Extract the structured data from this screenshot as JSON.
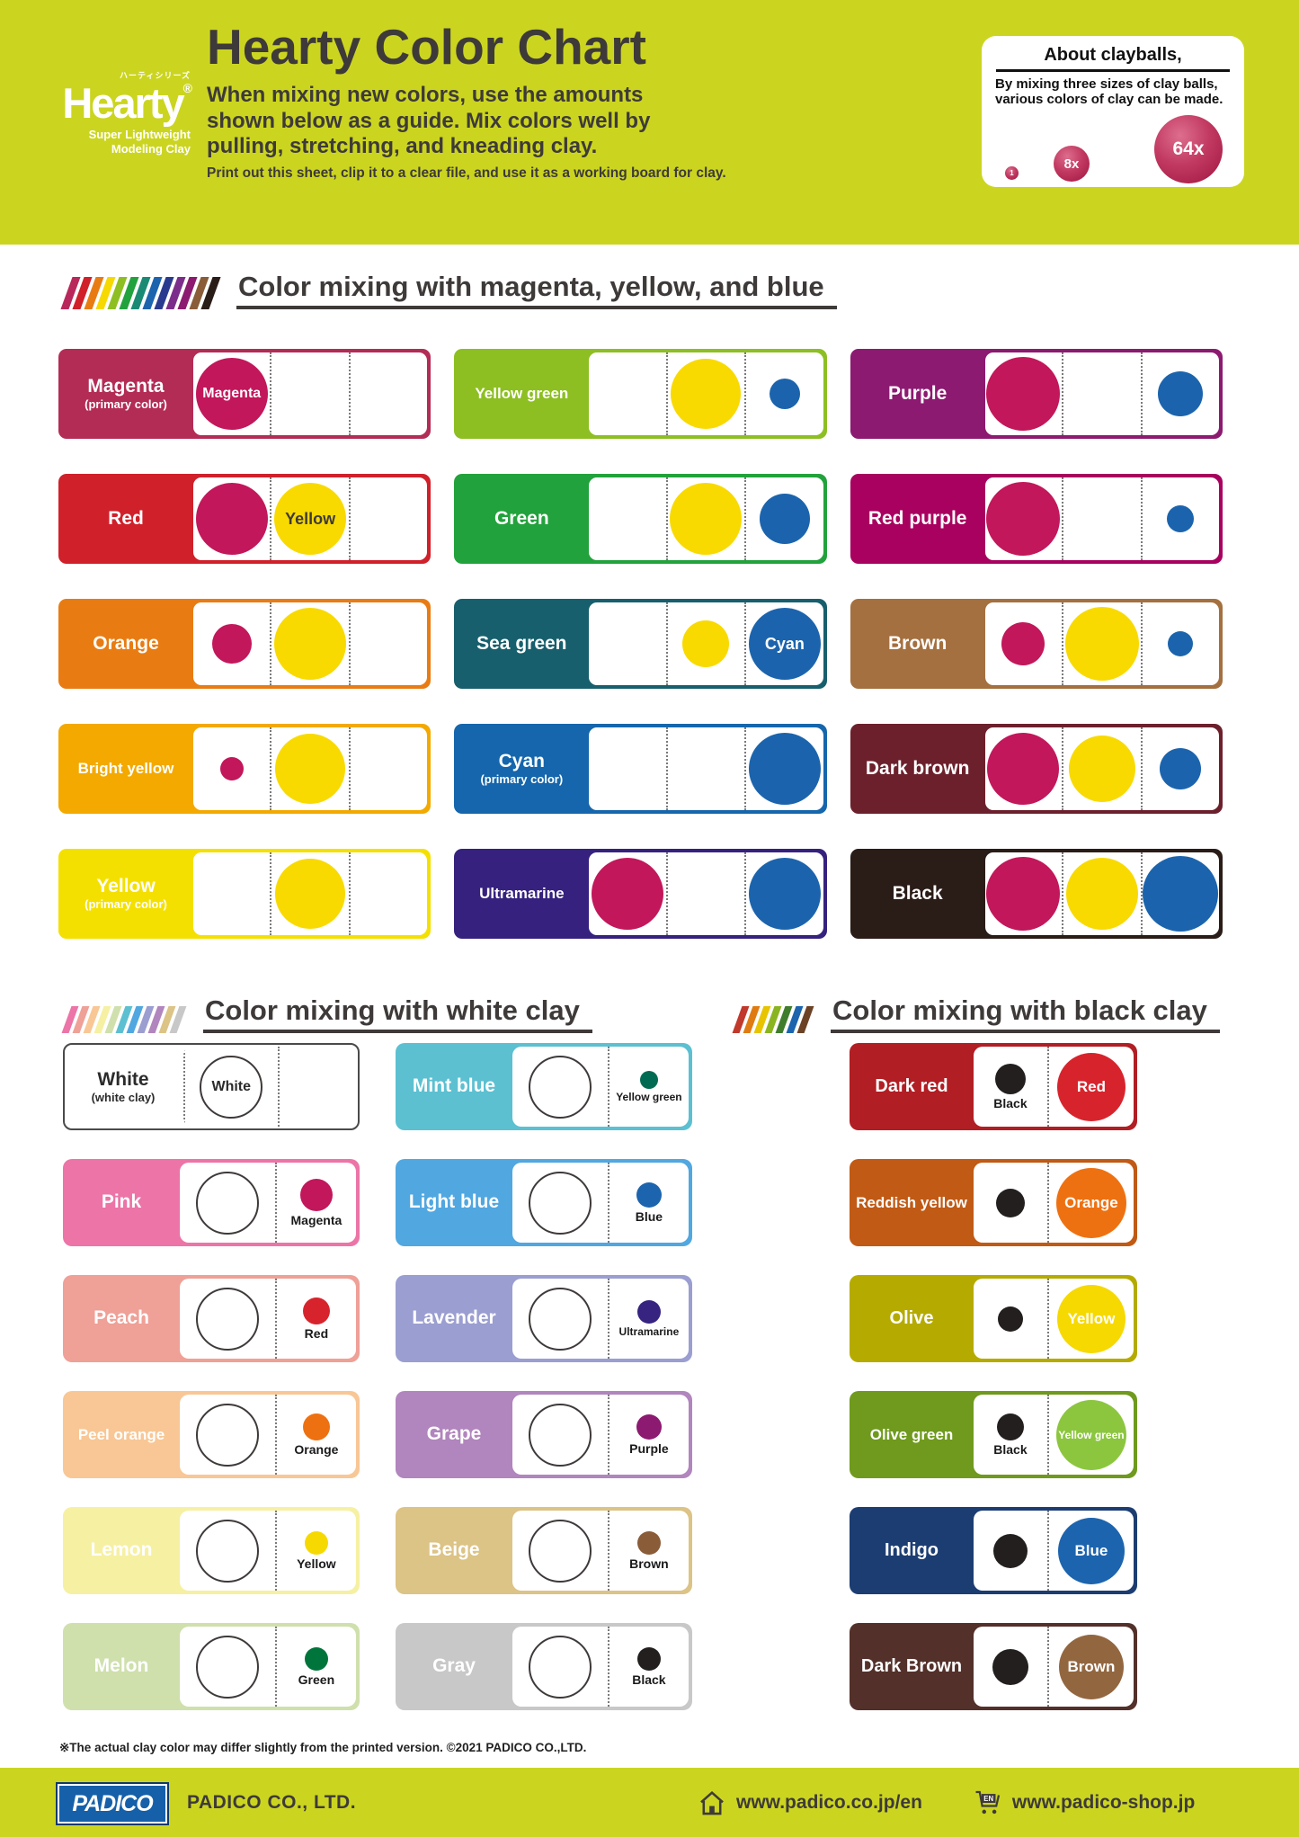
{
  "header": {
    "logo": {
      "jp": "ハーティシリーズ",
      "name": "Hearty",
      "reg": "®",
      "sub1": "Super Lightweight",
      "sub2": "Modeling Clay"
    },
    "title": "Hearty Color Chart",
    "subtitle_lines": [
      "When mixing new colors, use the amounts",
      "shown below as a guide. Mix colors well by",
      "pulling, stretching, and kneading clay."
    ],
    "note": "Print out this sheet, clip it to a clear file, and use it as a working board for clay.",
    "about": {
      "title": "About clayballs,",
      "body": "By mixing three sizes of clay balls, various colors of clay can be made.",
      "balls": [
        {
          "label": "1",
          "size": "small"
        },
        {
          "label": "8x",
          "size": "medium"
        },
        {
          "label": "64x",
          "size": "large"
        }
      ]
    }
  },
  "palette": {
    "magenta": "#c2175b",
    "yellow": "#f8da00",
    "blue": "#1b64ad",
    "dark_text": "#3e3a39",
    "header_bg": "#cbd520"
  },
  "sections": {
    "cmyb": {
      "title": "Color mixing with magenta, yellow, and blue",
      "stripes": [
        "#b8285a",
        "#d0202a",
        "#e87c13",
        "#f6d900",
        "#8dbf22",
        "#22a23c",
        "#1a8a74",
        "#1c64ae",
        "#2a3b8f",
        "#7c2d8b",
        "#8c1a70",
        "#8a5c38",
        "#2a1c17"
      ],
      "cards": [
        {
          "label": "Magenta",
          "sublabel": "(primary color)",
          "bg": "#b32c56",
          "cells": [
            {
              "name": "magenta",
              "color": "#c2175b",
              "size": 80,
              "label": "Magenta",
              "label_color": "#ffffff"
            },
            null,
            null
          ]
        },
        {
          "label": "Red",
          "bg": "#d0202a",
          "cells": [
            {
              "name": "magenta",
              "color": "#c2175b",
              "size": 80
            },
            {
              "name": "yellow",
              "color": "#f8da00",
              "size": 80,
              "label": "Yellow",
              "label_color": "#3e3a39"
            },
            null
          ]
        },
        {
          "label": "Orange",
          "bg": "#e87c13",
          "cells": [
            {
              "name": "magenta",
              "color": "#c2175b",
              "size": 44
            },
            {
              "name": "yellow",
              "color": "#f8da00",
              "size": 80
            },
            null
          ]
        },
        {
          "label": "Bright yellow",
          "bg": "#f3a900",
          "cells": [
            {
              "name": "magenta",
              "color": "#c2175b",
              "size": 26
            },
            {
              "name": "yellow",
              "color": "#f8da00",
              "size": 78
            },
            null
          ]
        },
        {
          "label": "Yellow",
          "sublabel": "(primary color)",
          "bg": "#f4e000",
          "cells": [
            null,
            {
              "name": "yellow",
              "color": "#f8da00",
              "size": 78
            },
            null
          ]
        },
        {
          "label": "Yellow green",
          "bg": "#8dbf22",
          "cells": [
            null,
            {
              "name": "yellow",
              "color": "#f8da00",
              "size": 78
            },
            {
              "name": "blue",
              "color": "#1b64ad",
              "size": 34
            }
          ]
        },
        {
          "label": "Green",
          "bg": "#22a23c",
          "cells": [
            null,
            {
              "name": "yellow",
              "color": "#f8da00",
              "size": 80
            },
            {
              "name": "blue",
              "color": "#1b64ad",
              "size": 56
            }
          ]
        },
        {
          "label": "Sea green",
          "bg": "#175f6d",
          "cells": [
            null,
            {
              "name": "yellow",
              "color": "#f8da00",
              "size": 52
            },
            {
              "name": "blue",
              "color": "#1b64ad",
              "size": 80,
              "label": "Cyan",
              "label_color": "#ffffff"
            }
          ]
        },
        {
          "label": "Cyan",
          "sublabel": "(primary color)",
          "bg": "#1566ac",
          "cells": [
            null,
            null,
            {
              "name": "blue",
              "color": "#1b64ad",
              "size": 80
            }
          ]
        },
        {
          "label": "Ultramarine",
          "bg": "#36217e",
          "cells": [
            {
              "name": "magenta",
              "color": "#c2175b",
              "size": 80
            },
            null,
            {
              "name": "blue",
              "color": "#1b64ad",
              "size": 80
            }
          ]
        },
        {
          "label": "Purple",
          "bg": "#8c1a70",
          "cells": [
            {
              "name": "magenta",
              "color": "#c2175b",
              "size": 82
            },
            null,
            {
              "name": "blue",
              "color": "#1b64ad",
              "size": 50
            }
          ]
        },
        {
          "label": "Red purple",
          "bg": "#a8015f",
          "cells": [
            {
              "name": "magenta",
              "color": "#c2175b",
              "size": 82
            },
            null,
            {
              "name": "blue",
              "color": "#1b64ad",
              "size": 30
            }
          ]
        },
        {
          "label": "Brown",
          "bg": "#a4703f",
          "cells": [
            {
              "name": "magenta",
              "color": "#c2175b",
              "size": 48
            },
            {
              "name": "yellow",
              "color": "#f8da00",
              "size": 82
            },
            {
              "name": "blue",
              "color": "#1b64ad",
              "size": 28
            }
          ]
        },
        {
          "label": "Dark brown",
          "bg": "#6c202c",
          "cells": [
            {
              "name": "magenta",
              "color": "#c2175b",
              "size": 80
            },
            {
              "name": "yellow",
              "color": "#f8da00",
              "size": 74
            },
            {
              "name": "blue",
              "color": "#1b64ad",
              "size": 46
            }
          ]
        },
        {
          "label": "Black",
          "bg": "#2a1c17",
          "cells": [
            {
              "name": "magenta",
              "color": "#c2175b",
              "size": 82
            },
            {
              "name": "yellow",
              "color": "#f8da00",
              "size": 80
            },
            {
              "name": "blue",
              "color": "#1b64ad",
              "size": 84
            }
          ]
        }
      ]
    },
    "white": {
      "title": "Color mixing with white clay",
      "stripes": [
        "#ec74a7",
        "#efa097",
        "#f8c795",
        "#f6f0a3",
        "#cfe0ad",
        "#5cc0d1",
        "#51a7e0",
        "#9b9ed0",
        "#b185bd",
        "#dcc386",
        "#c8c8c9"
      ],
      "white_ball_label": "White",
      "cards": [
        {
          "label": "White",
          "sublabel": "(white clay)",
          "bg": "#ffffff",
          "white": true,
          "circle_label": "White",
          "dot": null
        },
        {
          "label": "Pink",
          "bg": "#ec74a7",
          "dot": {
            "name": "magenta",
            "color": "#c2175b",
            "size": 36,
            "label": "Magenta"
          }
        },
        {
          "label": "Peach",
          "bg": "#efa097",
          "dot": {
            "name": "red",
            "color": "#d7242c",
            "size": 30,
            "label": "Red"
          }
        },
        {
          "label": "Peel orange",
          "bg": "#f8c795",
          "dot": {
            "name": "orange",
            "color": "#ee7111",
            "size": 30,
            "label": "Orange"
          }
        },
        {
          "label": "Lemon",
          "bg": "#f6f0a3",
          "dot": {
            "name": "yellow",
            "color": "#f6d900",
            "size": 26,
            "label": "Yellow"
          }
        },
        {
          "label": "Melon",
          "bg": "#cfe0ad",
          "dot": {
            "name": "green",
            "color": "#00753b",
            "size": 26,
            "label": "Green"
          }
        },
        {
          "label": "Mint blue",
          "bg": "#5cc0d1",
          "dot": {
            "name": "yellow-green",
            "color": "#006b52",
            "size": 20,
            "label": "Yellow green"
          }
        },
        {
          "label": "Light blue",
          "bg": "#51a7e0",
          "dot": {
            "name": "blue",
            "color": "#1c64ae",
            "size": 28,
            "label": "Blue"
          }
        },
        {
          "label": "Lavender",
          "bg": "#9b9ed0",
          "dot": {
            "name": "ultramarine",
            "color": "#372480",
            "size": 26,
            "label": "Ultramarine"
          }
        },
        {
          "label": "Grape",
          "bg": "#b185bd",
          "dot": {
            "name": "purple",
            "color": "#8c1a70",
            "size": 28,
            "label": "Purple"
          }
        },
        {
          "label": "Beige",
          "bg": "#dcc386",
          "dot": {
            "name": "brown",
            "color": "#8a5c38",
            "size": 26,
            "label": "Brown"
          }
        },
        {
          "label": "Gray",
          "bg": "#c8c8c9",
          "dot": {
            "name": "black",
            "color": "#231f1f",
            "size": 26,
            "label": "Black"
          }
        }
      ]
    },
    "black": {
      "title": "Color mixing with black clay",
      "stripes": [
        "#c0392b",
        "#e07b12",
        "#e8c400",
        "#8ab520",
        "#3f7d2c",
        "#1c64ae",
        "#6b4226"
      ],
      "cards": [
        {
          "label": "Dark red",
          "bg": "#b11e24",
          "dot_size": 34,
          "dot_label": "Black",
          "circle": {
            "name": "red",
            "color": "#d7242c",
            "size": 76,
            "label": "Red"
          }
        },
        {
          "label": "Reddish yellow",
          "bg": "#c05a15",
          "dot_size": 32,
          "dot_label": null,
          "circle": {
            "name": "orange",
            "color": "#ee7111",
            "size": 78,
            "label": "Orange"
          }
        },
        {
          "label": "Olive",
          "bg": "#b5ab00",
          "dot_size": 28,
          "dot_label": null,
          "circle": {
            "name": "yellow",
            "color": "#f6d900",
            "size": 76,
            "label": "Yellow"
          }
        },
        {
          "label": "Olive green",
          "bg": "#6f9a1d",
          "dot_size": 30,
          "dot_label": "Black",
          "circle": {
            "name": "yellow-green",
            "color": "#8cc63f",
            "size": 78,
            "label": "Yellow green"
          }
        },
        {
          "label": "Indigo",
          "bg": "#1c3d72",
          "dot_size": 38,
          "dot_label": null,
          "circle": {
            "name": "blue",
            "color": "#1c64ae",
            "size": 74,
            "label": "Blue"
          }
        },
        {
          "label": "Dark Brown",
          "bg": "#53302a",
          "dot_size": 40,
          "dot_label": null,
          "circle": {
            "name": "brown",
            "color": "#926740",
            "size": 72,
            "label": "Brown"
          }
        }
      ],
      "black_dot_color": "#231f1f"
    }
  },
  "disclaimer": "※The actual clay color may differ slightly from the printed version.  ©2021 PADICO CO.,LTD.",
  "footer": {
    "logo_text": "PADICO",
    "company": "PADICO CO., LTD.",
    "site_url": "www.padico.co.jp/en",
    "shop_url": "www.padico-shop.jp",
    "shop_icon_tag": "EN"
  }
}
